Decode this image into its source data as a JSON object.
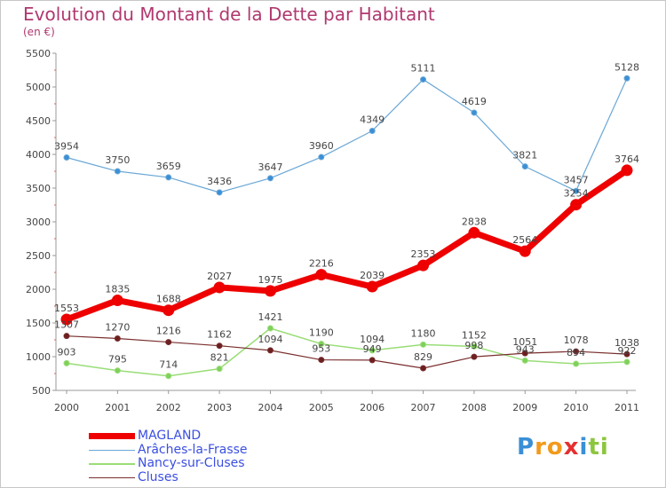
{
  "chart_data": {
    "type": "line",
    "title": "Evolution du Montant de la Dette par Habitant",
    "subtitle": "(en €)",
    "x": [
      "2000",
      "2001",
      "2002",
      "2003",
      "2004",
      "2005",
      "2006",
      "2007",
      "2008",
      "2009",
      "2010",
      "2011"
    ],
    "ylim": [
      500,
      5500
    ],
    "yticks": [
      500,
      1000,
      1500,
      2000,
      2500,
      3000,
      3500,
      4000,
      4500,
      5000,
      5500
    ],
    "grid": false,
    "legend_position": "bottom-left",
    "series": [
      {
        "name": "MAGLAND",
        "color": "#ee0000",
        "values": [
          1553,
          1835,
          1688,
          2027,
          1975,
          2216,
          2039,
          2353,
          2838,
          2564,
          3254,
          3764
        ]
      },
      {
        "name": "Arâches-la-Frasse",
        "color": "#6aa7d6",
        "values": [
          3954,
          3750,
          3659,
          3436,
          3647,
          3960,
          4349,
          5111,
          4619,
          3821,
          3457,
          5128
        ]
      },
      {
        "name": "Nancy-sur-Cluses",
        "color": "#99dd77",
        "values": [
          903,
          795,
          714,
          821,
          1421,
          1190,
          1094,
          1180,
          1152,
          943,
          894,
          922
        ]
      },
      {
        "name": "Cluses",
        "color": "#7a2e2e",
        "values": [
          1307,
          1270,
          1216,
          1162,
          1094,
          953,
          949,
          829,
          998,
          1051,
          1078,
          1038
        ]
      }
    ]
  },
  "logo": {
    "letters": [
      "P",
      "r",
      "o",
      "x",
      "i",
      "t",
      "i"
    ],
    "colors": [
      "#3a8fd6",
      "#f29a1d",
      "#f29a1d",
      "#e53030",
      "#3a8fd6",
      "#8cc63f",
      "#8cc63f"
    ]
  }
}
